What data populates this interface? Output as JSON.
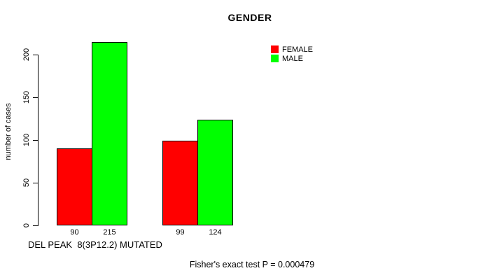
{
  "chart_data": {
    "type": "bar",
    "title": "GENDER",
    "ylabel": "number of cases",
    "xlabel": "DEL PEAK  8(3P12.2) MUTATED",
    "annotation": "Fisher's exact test P = 0.000479",
    "yticks": [
      0,
      50,
      100,
      150,
      200
    ],
    "ylim": [
      0,
      200
    ],
    "grid": false,
    "legend_position": "top-right",
    "background_color": "#ffffff",
    "axis_color": "#000000",
    "num_groups": 2,
    "series": [
      {
        "name": "FEMALE",
        "color": "#ff0000",
        "values": [
          90,
          99
        ]
      },
      {
        "name": "MALE",
        "color": "#00ff00",
        "values": [
          215,
          124
        ]
      }
    ],
    "bar_value_labels": [
      [
        "90",
        "215"
      ],
      [
        "99",
        "124"
      ]
    ]
  }
}
